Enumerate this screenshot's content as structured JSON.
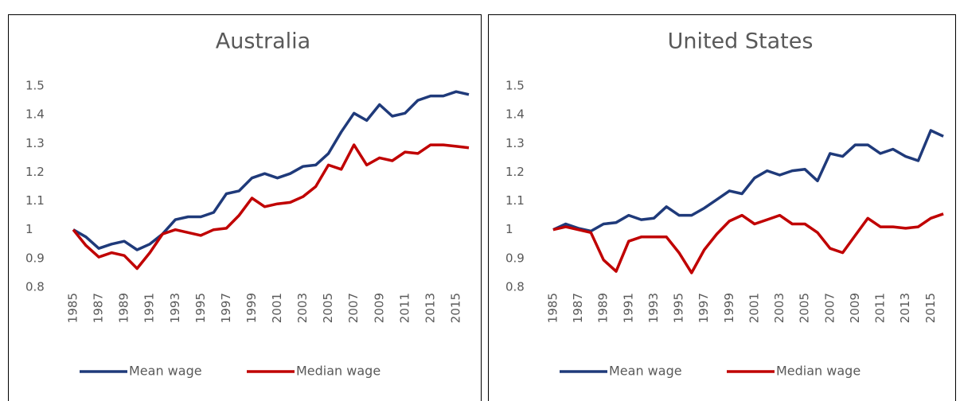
{
  "chart_data": [
    {
      "type": "line",
      "title": "Australia",
      "categories": [
        "1985",
        null,
        "1987",
        null,
        "1989",
        null,
        "1991",
        null,
        "1993",
        null,
        "1995",
        null,
        "1997",
        null,
        "1999",
        null,
        "2001",
        null,
        "2003",
        null,
        "2005",
        null,
        "2007",
        null,
        "2009",
        null,
        "2011",
        null,
        "2013",
        null,
        "2015",
        null
      ],
      "series": [
        {
          "name": "Mean wage",
          "color": "#1f3a7a",
          "values": [
            1.0,
            0.975,
            0.935,
            0.95,
            0.96,
            0.93,
            0.95,
            0.985,
            1.035,
            1.045,
            1.045,
            1.06,
            1.125,
            1.135,
            1.18,
            1.195,
            1.18,
            1.195,
            1.22,
            1.225,
            1.265,
            1.34,
            1.405,
            1.38,
            1.435,
            1.395,
            1.405,
            1.45,
            1.465,
            1.465,
            1.48,
            1.47
          ]
        },
        {
          "name": "Median wage",
          "color": "#c00000",
          "values": [
            1.0,
            0.945,
            0.905,
            0.92,
            0.91,
            0.865,
            0.92,
            0.985,
            1.0,
            0.99,
            0.98,
            1.0,
            1.005,
            1.05,
            1.11,
            1.08,
            1.09,
            1.095,
            1.115,
            1.15,
            1.225,
            1.21,
            1.295,
            1.225,
            1.25,
            1.24,
            1.27,
            1.265,
            1.295,
            1.295,
            1.29,
            1.285
          ]
        }
      ],
      "ylim": [
        0.8,
        1.5
      ],
      "yticks": [
        0.8,
        0.9,
        1,
        1.1,
        1.2,
        1.3,
        1.4,
        1.5
      ],
      "legend": "bottom"
    },
    {
      "type": "line",
      "title": "United States",
      "categories": [
        "1985",
        null,
        "1987",
        null,
        "1989",
        null,
        "1991",
        null,
        "1993",
        null,
        "1995",
        null,
        "1997",
        null,
        "1999",
        null,
        "2001",
        null,
        "2003",
        null,
        "2005",
        null,
        "2007",
        null,
        "2009",
        null,
        "2011",
        null,
        "2013",
        null,
        "2015",
        null
      ],
      "series": [
        {
          "name": "Mean wage",
          "color": "#1f3a7a",
          "values": [
            1.0,
            1.02,
            1.005,
            0.995,
            1.02,
            1.025,
            1.05,
            1.035,
            1.04,
            1.08,
            1.05,
            1.05,
            1.075,
            1.105,
            1.135,
            1.125,
            1.18,
            1.205,
            1.19,
            1.205,
            1.21,
            1.17,
            1.265,
            1.255,
            1.295,
            1.295,
            1.265,
            1.28,
            1.255,
            1.24,
            1.345,
            1.325
          ]
        },
        {
          "name": "Median wage",
          "color": "#c00000",
          "values": [
            1.0,
            1.01,
            1.0,
            0.99,
            0.895,
            0.855,
            0.96,
            0.975,
            0.975,
            0.975,
            0.92,
            0.85,
            0.93,
            0.985,
            1.03,
            1.05,
            1.02,
            1.035,
            1.05,
            1.02,
            1.02,
            0.99,
            0.935,
            0.92,
            0.98,
            1.04,
            1.01,
            1.01,
            1.005,
            1.01,
            1.04,
            1.055
          ]
        }
      ],
      "ylim": [
        0.8,
        1.5
      ],
      "yticks": [
        0.8,
        0.9,
        1,
        1.1,
        1.2,
        1.3,
        1.4,
        1.5
      ],
      "legend": "bottom"
    }
  ]
}
